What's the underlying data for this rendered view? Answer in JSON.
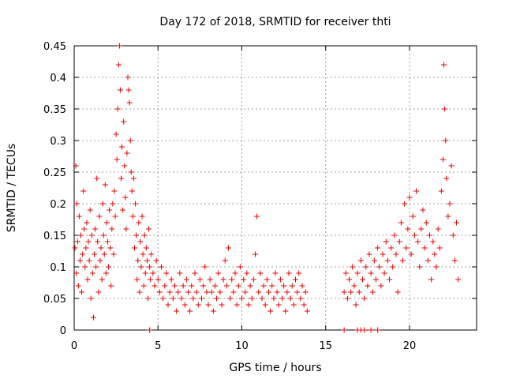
{
  "chart_data": {
    "type": "scatter",
    "title": "Day 172 of 2018, SRMTID for receiver thti",
    "xlabel": "GPS time / hours",
    "ylabel": "SRMTID / TECUs",
    "xlim": [
      0,
      24
    ],
    "ylim": [
      0,
      0.45
    ],
    "xticks": [
      0,
      5,
      10,
      15,
      20
    ],
    "xtick_labels": [
      "0",
      "5",
      "10",
      "15",
      "20"
    ],
    "yticks": [
      0,
      0.05,
      0.1,
      0.15,
      0.2,
      0.25,
      0.3,
      0.35,
      0.4,
      0.45
    ],
    "ytick_labels": [
      "0",
      "0.05",
      "0.1",
      "0.15",
      "0.2",
      "0.25",
      "0.3",
      "0.35",
      "0.4",
      "0.45"
    ],
    "grid": true,
    "marker": "plus",
    "color": "#ee0000",
    "series": [
      {
        "values": [
          [
            0.05,
            0.13
          ],
          [
            0.1,
            0.26
          ],
          [
            0.12,
            0.09
          ],
          [
            0.15,
            0.2
          ],
          [
            0.2,
            0.14
          ],
          [
            0.25,
            0.07
          ],
          [
            0.3,
            0.18
          ],
          [
            0.35,
            0.11
          ],
          [
            0.4,
            0.15
          ],
          [
            0.45,
            0.06
          ],
          [
            0.5,
            0.12
          ],
          [
            0.55,
            0.22
          ],
          [
            0.6,
            0.16
          ],
          [
            0.65,
            0.1
          ],
          [
            0.7,
            0.13
          ],
          [
            0.75,
            0.17
          ],
          [
            0.8,
            0.08
          ],
          [
            0.85,
            0.14
          ],
          [
            0.9,
            0.11
          ],
          [
            0.95,
            0.19
          ],
          [
            1.0,
            0.05
          ],
          [
            1.05,
            0.15
          ],
          [
            1.1,
            0.09
          ],
          [
            1.15,
            0.02
          ],
          [
            1.2,
            0.12
          ],
          [
            1.25,
            0.16
          ],
          [
            1.3,
            0.1
          ],
          [
            1.35,
            0.24
          ],
          [
            1.4,
            0.14
          ],
          [
            1.45,
            0.06
          ],
          [
            1.5,
            0.18
          ],
          [
            1.55,
            0.11
          ],
          [
            1.6,
            0.13
          ],
          [
            1.65,
            0.08
          ],
          [
            1.7,
            0.2
          ],
          [
            1.75,
            0.15
          ],
          [
            1.8,
            0.12
          ],
          [
            1.85,
            0.23
          ],
          [
            1.9,
            0.09
          ],
          [
            1.95,
            0.17
          ],
          [
            2.0,
            0.14
          ],
          [
            2.05,
            0.1
          ],
          [
            2.1,
            0.19
          ],
          [
            2.15,
            0.13
          ],
          [
            2.2,
            0.07
          ],
          [
            2.25,
            0.16
          ],
          [
            2.3,
            0.2
          ],
          [
            2.35,
            0.12
          ],
          [
            2.4,
            0.22
          ],
          [
            2.45,
            0.18
          ],
          [
            2.5,
            0.31
          ],
          [
            2.55,
            0.27
          ],
          [
            2.6,
            0.35
          ],
          [
            2.65,
            0.42
          ],
          [
            2.7,
            0.45
          ],
          [
            2.75,
            0.38
          ],
          [
            2.8,
            0.24
          ],
          [
            2.85,
            0.29
          ],
          [
            2.9,
            0.19
          ],
          [
            2.95,
            0.33
          ],
          [
            3.0,
            0.26
          ],
          [
            3.05,
            0.21
          ],
          [
            3.1,
            0.16
          ],
          [
            3.15,
            0.28
          ],
          [
            3.2,
            0.4
          ],
          [
            3.25,
            0.38
          ],
          [
            3.3,
            0.36
          ],
          [
            3.35,
            0.3
          ],
          [
            3.4,
            0.25
          ],
          [
            3.45,
            0.22
          ],
          [
            3.5,
            0.18
          ],
          [
            3.55,
            0.24
          ],
          [
            3.6,
            0.13
          ],
          [
            3.65,
            0.2
          ],
          [
            3.7,
            0.15
          ],
          [
            3.75,
            0.08
          ],
          [
            3.8,
            0.11
          ],
          [
            3.85,
            0.17
          ],
          [
            3.9,
            0.06
          ],
          [
            3.95,
            0.14
          ],
          [
            4.0,
            0.1
          ],
          [
            4.05,
            0.18
          ],
          [
            4.1,
            0.12
          ],
          [
            4.15,
            0.07
          ],
          [
            4.2,
            0.15
          ],
          [
            4.25,
            0.09
          ],
          [
            4.3,
            0.13
          ],
          [
            4.35,
            0.11
          ],
          [
            4.4,
            0.05
          ],
          [
            4.45,
            0.16
          ],
          [
            4.5,
            0.1
          ],
          [
            4.55,
            0.08
          ],
          [
            4.6,
            0.12
          ],
          [
            4.7,
            0.09
          ],
          [
            4.8,
            0.07
          ],
          [
            4.9,
            0.11
          ],
          [
            5.0,
            0.08
          ],
          [
            5.1,
            0.06
          ],
          [
            5.2,
            0.1
          ],
          [
            5.3,
            0.05
          ],
          [
            5.4,
            0.07
          ],
          [
            5.5,
            0.09
          ],
          [
            5.6,
            0.04
          ],
          [
            5.7,
            0.06
          ],
          [
            5.8,
            0.08
          ],
          [
            5.9,
            0.05
          ],
          [
            6.0,
            0.07
          ],
          [
            6.1,
            0.03
          ],
          [
            6.2,
            0.06
          ],
          [
            6.3,
            0.09
          ],
          [
            6.4,
            0.05
          ],
          [
            6.5,
            0.07
          ],
          [
            6.6,
            0.04
          ],
          [
            6.7,
            0.08
          ],
          [
            6.8,
            0.06
          ],
          [
            6.9,
            0.03
          ],
          [
            7.0,
            0.07
          ],
          [
            7.1,
            0.05
          ],
          [
            7.2,
            0.09
          ],
          [
            7.3,
            0.06
          ],
          [
            7.4,
            0.04
          ],
          [
            7.5,
            0.08
          ],
          [
            7.6,
            0.05
          ],
          [
            7.7,
            0.07
          ],
          [
            7.8,
            0.1
          ],
          [
            7.9,
            0.06
          ],
          [
            8.0,
            0.04
          ],
          [
            8.1,
            0.08
          ],
          [
            8.2,
            0.06
          ],
          [
            8.3,
            0.03
          ],
          [
            8.4,
            0.07
          ],
          [
            8.5,
            0.05
          ],
          [
            8.6,
            0.09
          ],
          [
            8.7,
            0.06
          ],
          [
            8.8,
            0.04
          ],
          [
            8.9,
            0.08
          ],
          [
            9.0,
            0.11
          ],
          [
            9.1,
            0.07
          ],
          [
            9.2,
            0.13
          ],
          [
            9.3,
            0.05
          ],
          [
            9.4,
            0.08
          ],
          [
            9.5,
            0.06
          ],
          [
            9.6,
            0.09
          ],
          [
            9.7,
            0.04
          ],
          [
            9.8,
            0.07
          ],
          [
            9.9,
            0.1
          ],
          [
            10.0,
            0.05
          ],
          [
            10.1,
            0.08
          ],
          [
            10.2,
            0.06
          ],
          [
            10.3,
            0.09
          ],
          [
            10.4,
            0.04
          ],
          [
            10.5,
            0.07
          ],
          [
            10.6,
            0.05
          ],
          [
            10.7,
            0.08
          ],
          [
            10.8,
            0.12
          ],
          [
            10.9,
            0.18
          ],
          [
            11.0,
            0.06
          ],
          [
            11.1,
            0.09
          ],
          [
            11.2,
            0.05
          ],
          [
            11.3,
            0.07
          ],
          [
            11.4,
            0.04
          ],
          [
            11.5,
            0.08
          ],
          [
            11.6,
            0.06
          ],
          [
            11.7,
            0.03
          ],
          [
            11.8,
            0.07
          ],
          [
            11.9,
            0.05
          ],
          [
            12.0,
            0.09
          ],
          [
            12.1,
            0.06
          ],
          [
            12.2,
            0.04
          ],
          [
            12.3,
            0.08
          ],
          [
            12.4,
            0.05
          ],
          [
            12.5,
            0.07
          ],
          [
            12.6,
            0.03
          ],
          [
            12.7,
            0.06
          ],
          [
            12.8,
            0.09
          ],
          [
            12.9,
            0.05
          ],
          [
            13.0,
            0.07
          ],
          [
            13.1,
            0.04
          ],
          [
            13.2,
            0.08
          ],
          [
            13.3,
            0.06
          ],
          [
            13.4,
            0.09
          ],
          [
            13.5,
            0.05
          ],
          [
            13.6,
            0.07
          ],
          [
            13.7,
            0.04
          ],
          [
            13.8,
            0.06
          ],
          [
            13.9,
            0.03
          ],
          [
            16.1,
            0.06
          ],
          [
            16.2,
            0.09
          ],
          [
            16.3,
            0.05
          ],
          [
            16.4,
            0.08
          ],
          [
            16.5,
            0.06
          ],
          [
            16.6,
            0.1
          ],
          [
            16.7,
            0.07
          ],
          [
            16.8,
            0.04
          ],
          [
            16.9,
            0.09
          ],
          [
            17.0,
            0.06
          ],
          [
            17.1,
            0.11
          ],
          [
            17.2,
            0.08
          ],
          [
            17.3,
            0.05
          ],
          [
            17.4,
            0.1
          ],
          [
            17.5,
            0.07
          ],
          [
            17.6,
            0.12
          ],
          [
            17.7,
            0.09
          ],
          [
            17.8,
            0.06
          ],
          [
            17.9,
            0.11
          ],
          [
            18.0,
            0.08
          ],
          [
            18.1,
            0.13
          ],
          [
            18.2,
            0.1
          ],
          [
            18.3,
            0.07
          ],
          [
            18.4,
            0.12
          ],
          [
            18.5,
            0.09
          ],
          [
            18.6,
            0.14
          ],
          [
            18.7,
            0.11
          ],
          [
            18.8,
            0.08
          ],
          [
            18.9,
            0.13
          ],
          [
            19.0,
            0.1
          ],
          [
            19.1,
            0.15
          ],
          [
            19.2,
            0.12
          ],
          [
            19.3,
            0.06
          ],
          [
            19.4,
            0.14
          ],
          [
            19.5,
            0.17
          ],
          [
            19.6,
            0.11
          ],
          [
            19.7,
            0.2
          ],
          [
            19.8,
            0.13
          ],
          [
            19.9,
            0.16
          ],
          [
            20.0,
            0.21
          ],
          [
            20.1,
            0.12
          ],
          [
            20.2,
            0.18
          ],
          [
            20.3,
            0.15
          ],
          [
            20.4,
            0.22
          ],
          [
            20.5,
            0.14
          ],
          [
            20.6,
            0.1
          ],
          [
            20.7,
            0.16
          ],
          [
            20.8,
            0.19
          ],
          [
            20.9,
            0.13
          ],
          [
            21.0,
            0.17
          ],
          [
            21.1,
            0.11
          ],
          [
            21.2,
            0.15
          ],
          [
            21.3,
            0.08
          ],
          [
            21.4,
            0.14
          ],
          [
            21.5,
            0.12
          ],
          [
            21.6,
            0.1
          ],
          [
            21.7,
            0.16
          ],
          [
            21.8,
            0.13
          ],
          [
            21.9,
            0.22
          ],
          [
            22.0,
            0.27
          ],
          [
            22.05,
            0.42
          ],
          [
            22.1,
            0.35
          ],
          [
            22.15,
            0.3
          ],
          [
            22.2,
            0.24
          ],
          [
            22.3,
            0.18
          ],
          [
            22.4,
            0.2
          ],
          [
            22.5,
            0.26
          ],
          [
            22.6,
            0.15
          ],
          [
            22.7,
            0.11
          ],
          [
            22.8,
            0.17
          ],
          [
            22.9,
            0.08
          ]
        ]
      },
      {
        "values": [
          [
            4.5,
            0
          ],
          [
            16.1,
            0
          ],
          [
            16.9,
            0
          ],
          [
            17.1,
            0
          ],
          [
            17.3,
            0
          ],
          [
            17.7,
            0
          ],
          [
            18.1,
            0
          ]
        ]
      }
    ]
  }
}
